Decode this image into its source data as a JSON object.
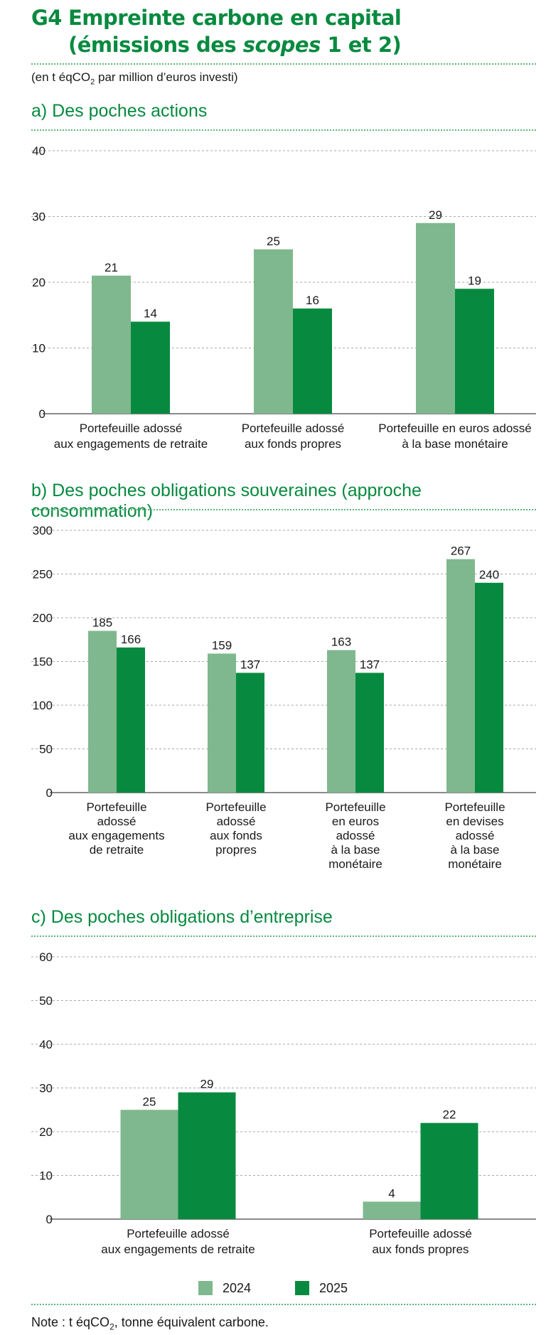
{
  "figure": {
    "number": "G4",
    "title_line1": "Empreinte carbone en capital",
    "title_line2_before": "(émissions des ",
    "title_line2_italic": "scopes",
    "title_line2_after": " 1 et 2)",
    "unit_before": "(en t éqCO",
    "unit_sub": "2",
    "unit_after": " par million d’euros investi)"
  },
  "colors": {
    "y2024": "#7fb88e",
    "y2025": "#078a3f",
    "title": "#078a3f",
    "grid": "#a9a9a9"
  },
  "legend": [
    {
      "label": "2024",
      "color": "#7fb88e"
    },
    {
      "label": "2025",
      "color": "#078a3f"
    }
  ],
  "note": {
    "before": "Note : t éqCO",
    "sub": "2",
    "after": ", tonne équivalent carbone."
  },
  "chart_data": [
    {
      "id": "a",
      "type": "bar",
      "title": "a)  Des poches actions",
      "ylim": [
        0,
        40
      ],
      "yticks": [
        0,
        10,
        20,
        30,
        40
      ],
      "grid": true,
      "categories": [
        [
          "Portefeuille adossé",
          "aux engagements de retraite"
        ],
        [
          "Portefeuille adossé",
          "aux fonds propres"
        ],
        [
          "Portefeuille en euros adossé",
          "à la base monétaire"
        ]
      ],
      "series": [
        {
          "name": "2024",
          "values": [
            21,
            25,
            29
          ],
          "labels": [
            "21",
            "25",
            "29"
          ]
        },
        {
          "name": "2025",
          "values": [
            14,
            16,
            19
          ],
          "labels": [
            "14",
            "16",
            "19"
          ]
        }
      ]
    },
    {
      "id": "b",
      "type": "bar",
      "title": "b)  Des poches obligations souveraines (approche consommation)",
      "ylim": [
        0,
        300
      ],
      "yticks": [
        0,
        50,
        100,
        150,
        200,
        250,
        300
      ],
      "grid": true,
      "categories": [
        [
          "Portefeuille",
          "adossé",
          "aux engagements",
          "de retraite"
        ],
        [
          "Portefeuille",
          "adossé",
          "aux fonds",
          "propres"
        ],
        [
          "Portefeuille",
          "en euros",
          "adossé",
          "à la base",
          "monétaire"
        ],
        [
          "Portefeuille",
          "en devises",
          "adossé",
          "à la base",
          "monétaire"
        ]
      ],
      "series": [
        {
          "name": "2024",
          "values": [
            185,
            159,
            163,
            267
          ],
          "labels": [
            "185",
            "159",
            "163",
            "267"
          ]
        },
        {
          "name": "2025",
          "values": [
            166,
            137,
            137,
            240
          ],
          "labels": [
            "166",
            "137",
            "137",
            "240"
          ]
        }
      ]
    },
    {
      "id": "c",
      "type": "bar",
      "title": "c)  Des poches obligations d’entreprise",
      "ylim": [
        0,
        60
      ],
      "yticks": [
        0,
        10,
        20,
        30,
        40,
        50,
        60
      ],
      "grid": true,
      "categories": [
        [
          "Portefeuille adossé",
          "aux engagements de retraite"
        ],
        [
          "Portefeuille adossé",
          "aux fonds propres"
        ]
      ],
      "series": [
        {
          "name": "2024",
          "values": [
            25,
            4
          ],
          "labels": [
            "25",
            "4"
          ]
        },
        {
          "name": "2025",
          "values": [
            29,
            22
          ],
          "labels": [
            "29",
            "22"
          ]
        }
      ]
    }
  ]
}
